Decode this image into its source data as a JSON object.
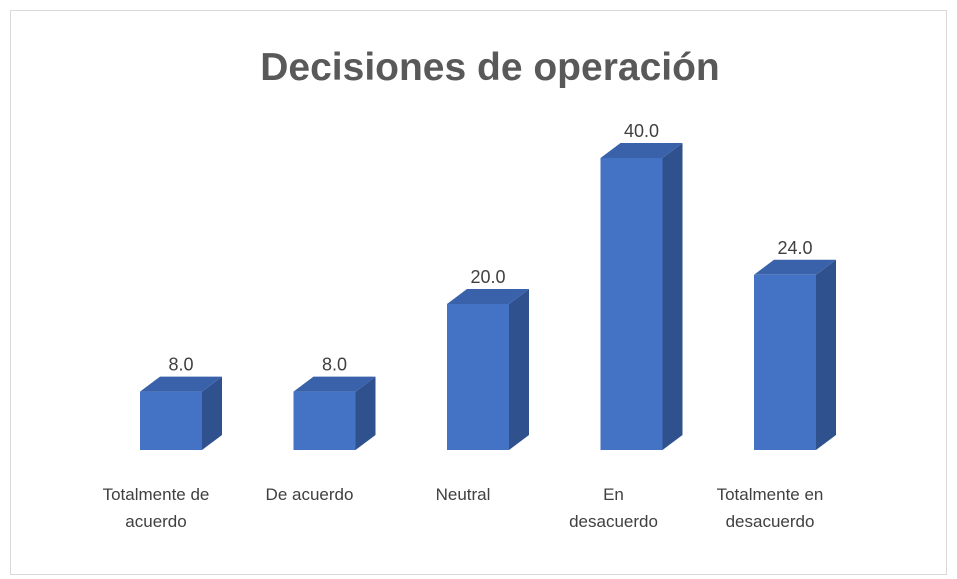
{
  "chart_data": {
    "type": "bar",
    "title": "Decisiones de operación",
    "categories": [
      "Totalmente de acuerdo",
      "De acuerdo",
      "Neutral",
      "En desacuerdo",
      "Totalmente en desacuerdo"
    ],
    "values": [
      8,
      8,
      20,
      40,
      24
    ],
    "value_labels": [
      "8.0",
      "8.0",
      "20.0",
      "40.0",
      "24.0"
    ],
    "color": "#4472c4"
  }
}
